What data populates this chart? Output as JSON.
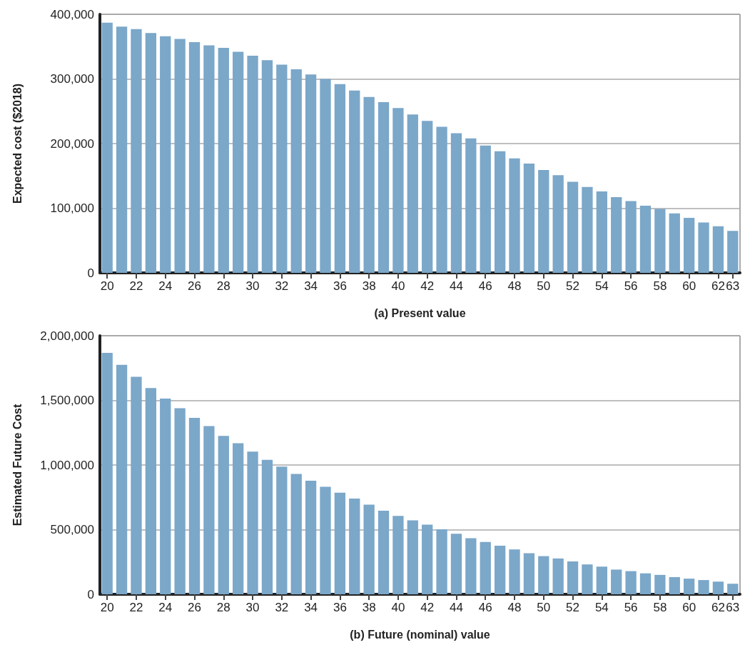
{
  "chart_data": [
    {
      "type": "bar",
      "xlabel": "(a) Present value",
      "ylabel": "Expected cost ($2018)",
      "categories": [
        "20",
        null,
        "22",
        null,
        "24",
        null,
        "26",
        null,
        "28",
        null,
        "30",
        null,
        "32",
        null,
        "34",
        null,
        "36",
        null,
        "38",
        null,
        "40",
        null,
        "42",
        null,
        "44",
        null,
        "46",
        null,
        "48",
        null,
        "50",
        null,
        "52",
        null,
        "54",
        null,
        "56",
        null,
        "58",
        null,
        "60",
        null,
        "62",
        "63"
      ],
      "color": "#7ba7c9",
      "values": [
        387000,
        381000,
        377000,
        371000,
        366000,
        362000,
        357000,
        352000,
        348000,
        342000,
        336000,
        329000,
        322000,
        315000,
        307000,
        300000,
        292000,
        282000,
        272000,
        264000,
        255000,
        245000,
        235000,
        226000,
        216000,
        208000,
        197000,
        188000,
        177000,
        169000,
        159000,
        151000,
        141000,
        133000,
        126000,
        117000,
        111000,
        104000,
        99000,
        92000,
        85000,
        78000,
        72000,
        65000
      ],
      "ylim": [
        0,
        400000
      ],
      "yticks": [
        0,
        {
          "value": 100000,
          "label": "100,000"
        },
        {
          "value": 200000,
          "label": "200,000"
        },
        {
          "value": 300000,
          "label": "300,000"
        },
        {
          "value": 400000,
          "label": "400,000"
        }
      ],
      "grid": "y"
    },
    {
      "type": "bar",
      "xlabel": "(b) Future (nominal) value",
      "ylabel": "Estimated Future Cost",
      "categories": [
        "20",
        null,
        "22",
        null,
        "24",
        null,
        "26",
        null,
        "28",
        null,
        "30",
        null,
        "32",
        null,
        "34",
        null,
        "36",
        null,
        "38",
        null,
        "40",
        null,
        "42",
        null,
        "44",
        null,
        "46",
        null,
        "48",
        null,
        "50",
        null,
        "52",
        null,
        "54",
        null,
        "56",
        null,
        "58",
        null,
        "60",
        null,
        "62",
        "63"
      ],
      "color": "#7ba7c9",
      "values": [
        1867000,
        1775000,
        1682000,
        1595000,
        1514000,
        1439000,
        1364000,
        1301000,
        1225000,
        1168000,
        1104000,
        1040000,
        988000,
        931000,
        879000,
        832000,
        786000,
        740000,
        694000,
        647000,
        607000,
        572000,
        538000,
        503000,
        468000,
        434000,
        405000,
        376000,
        347000,
        318000,
        295000,
        277000,
        254000,
        231000,
        214000,
        191000,
        179000,
        162000,
        150000,
        133000,
        121000,
        110000,
        98000,
        81000
      ],
      "ylim": [
        0,
        2000000
      ],
      "yticks": [
        0,
        {
          "value": 500000,
          "label": "500,000"
        },
        {
          "value": 1000000,
          "label": "1,000,000"
        },
        {
          "value": 1500000,
          "label": "1,500,000"
        },
        {
          "value": 2000000,
          "label": "2,000,000"
        }
      ],
      "grid": "y"
    }
  ]
}
